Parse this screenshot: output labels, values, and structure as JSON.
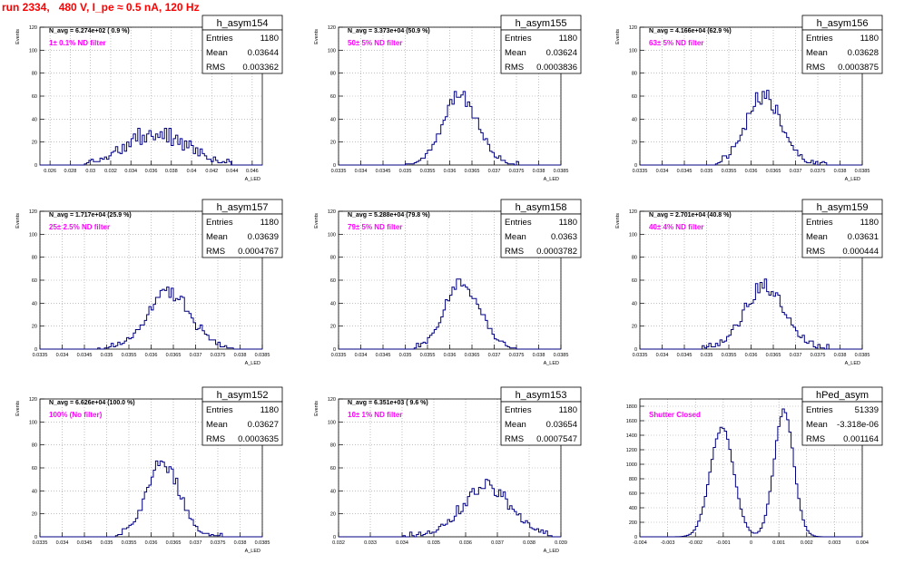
{
  "header": {
    "title": "run 2334,   480 V, I_pe ≈ 0.5 nA, 120 Hz"
  },
  "style": {
    "histogram_color": "#000080",
    "filter_text_color": "#ff00ff",
    "title_color": "#ff0000",
    "grid_color": "#999999"
  },
  "chart_data": [
    {
      "type": "histogram",
      "name": "h_asym154",
      "navg": "N_avg = 6.274e+02 ( 0.9 %)",
      "filter": "1± 0.1% ND filter",
      "stats": {
        "entries": "1180",
        "mean": "0.03644",
        "rms": "0.003362"
      },
      "stat_labels": {
        "entries": "Entries",
        "mean": "Mean",
        "rms": "RMS"
      },
      "ylabel": "Events",
      "xlabel": "A_LED",
      "xlim": [
        0.025,
        0.047
      ],
      "ylim": [
        0,
        120
      ],
      "xticks": [
        "0.026",
        "0.028",
        "0.03",
        "0.032",
        "0.034",
        "0.036",
        "0.038",
        "0.04",
        "0.042",
        "0.044",
        "0.046"
      ],
      "yticks": [
        "0",
        "20",
        "40",
        "60",
        "80",
        "100",
        "120"
      ],
      "shape": {
        "type": "gauss",
        "mu": 0.0365,
        "sigma": 0.0029,
        "peak": 28,
        "nbins": 100,
        "xmin": 0.0295,
        "xmax": 0.044,
        "noise": 0.3,
        "seed": 154
      }
    },
    {
      "type": "histogram",
      "name": "h_asym155",
      "navg": "N_avg = 3.373e+04 (50.9 %)",
      "filter": "50± 5% ND filter",
      "stats": {
        "entries": "1180",
        "mean": "0.03624",
        "rms": "0.0003836"
      },
      "stat_labels": {
        "entries": "Entries",
        "mean": "Mean",
        "rms": "RMS"
      },
      "ylabel": "Events",
      "xlabel": "A_LED",
      "xlim": [
        0.0335,
        0.0385
      ],
      "ylim": [
        0,
        120
      ],
      "xticks": [
        "0.0335",
        "0.034",
        "0.0345",
        "0.035",
        "0.0355",
        "0.036",
        "0.0365",
        "0.037",
        "0.0375",
        "0.038",
        "0.0385"
      ],
      "yticks": [
        "0",
        "20",
        "40",
        "60",
        "80",
        "100",
        "120"
      ],
      "shape": {
        "type": "gauss",
        "mu": 0.03624,
        "sigma": 0.00038,
        "peak": 60,
        "nbins": 100,
        "xmin": 0.0349,
        "xmax": 0.0376,
        "noise": 0.12,
        "seed": 155
      }
    },
    {
      "type": "histogram",
      "name": "h_asym156",
      "navg": "N_avg = 4.166e+04 (62.9 %)",
      "filter": "63± 5% ND filter",
      "stats": {
        "entries": "1180",
        "mean": "0.03628",
        "rms": "0.0003875"
      },
      "stat_labels": {
        "entries": "Entries",
        "mean": "Mean",
        "rms": "RMS"
      },
      "ylabel": "Events",
      "xlabel": "A_LED",
      "xlim": [
        0.0335,
        0.0385
      ],
      "ylim": [
        0,
        120
      ],
      "xticks": [
        "0.0335",
        "0.034",
        "0.0345",
        "0.035",
        "0.0355",
        "0.036",
        "0.0365",
        "0.037",
        "0.0375",
        "0.038",
        "0.0385"
      ],
      "yticks": [
        "0",
        "20",
        "40",
        "60",
        "80",
        "100",
        "120"
      ],
      "shape": {
        "type": "gauss",
        "mu": 0.03628,
        "sigma": 0.00039,
        "peak": 60,
        "nbins": 100,
        "xmin": 0.0352,
        "xmax": 0.0377,
        "noise": 0.12,
        "seed": 156
      }
    },
    {
      "type": "histogram",
      "name": "h_asym157",
      "navg": "N_avg = 1.717e+04 (25.9 %)",
      "filter": "25± 2.5% ND filter",
      "stats": {
        "entries": "1180",
        "mean": "0.03639",
        "rms": "0.0004767"
      },
      "stat_labels": {
        "entries": "Entries",
        "mean": "Mean",
        "rms": "RMS"
      },
      "ylabel": "Events",
      "xlabel": "A_LED",
      "xlim": [
        0.0335,
        0.0385
      ],
      "ylim": [
        0,
        120
      ],
      "xticks": [
        "0.0335",
        "0.034",
        "0.0345",
        "0.035",
        "0.0355",
        "0.036",
        "0.0365",
        "0.037",
        "0.0375",
        "0.038",
        "0.0385"
      ],
      "yticks": [
        "0",
        "20",
        "40",
        "60",
        "80",
        "100",
        "120"
      ],
      "shape": {
        "type": "gauss",
        "mu": 0.03639,
        "sigma": 0.00048,
        "peak": 48,
        "nbins": 100,
        "xmin": 0.0348,
        "xmax": 0.0379,
        "noise": 0.15,
        "seed": 157
      }
    },
    {
      "type": "histogram",
      "name": "h_asym158",
      "navg": "N_avg = 5.288e+04 (79.8 %)",
      "filter": "79± 5% ND filter",
      "stats": {
        "entries": "1180",
        "mean": "0.0363",
        "rms": "0.0003782"
      },
      "stat_labels": {
        "entries": "Entries",
        "mean": "Mean",
        "rms": "RMS"
      },
      "ylabel": "Events",
      "xlabel": "A_LED",
      "xlim": [
        0.0335,
        0.0385
      ],
      "ylim": [
        0,
        120
      ],
      "xticks": [
        "0.0335",
        "0.034",
        "0.0345",
        "0.035",
        "0.0355",
        "0.036",
        "0.0365",
        "0.037",
        "0.0375",
        "0.038",
        "0.0385"
      ],
      "yticks": [
        "0",
        "20",
        "40",
        "60",
        "80",
        "100",
        "120"
      ],
      "shape": {
        "type": "gauss",
        "mu": 0.0363,
        "sigma": 0.00038,
        "peak": 58,
        "nbins": 100,
        "xmin": 0.0352,
        "xmax": 0.0376,
        "noise": 0.12,
        "seed": 158
      }
    },
    {
      "type": "histogram",
      "name": "h_asym159",
      "navg": "N_avg = 2.701e+04 (40.8 %)",
      "filter": "40± 4% ND filter",
      "stats": {
        "entries": "1180",
        "mean": "0.03631",
        "rms": "0.000444"
      },
      "stat_labels": {
        "entries": "Entries",
        "mean": "Mean",
        "rms": "RMS"
      },
      "ylabel": "Events",
      "xlabel": "A_LED",
      "xlim": [
        0.0335,
        0.0385
      ],
      "ylim": [
        0,
        120
      ],
      "xticks": [
        "0.0335",
        "0.034",
        "0.0345",
        "0.035",
        "0.0355",
        "0.036",
        "0.0365",
        "0.037",
        "0.0375",
        "0.038",
        "0.0385"
      ],
      "yticks": [
        "0",
        "20",
        "40",
        "60",
        "80",
        "100",
        "120"
      ],
      "shape": {
        "type": "gauss",
        "mu": 0.03631,
        "sigma": 0.00044,
        "peak": 55,
        "nbins": 100,
        "xmin": 0.0349,
        "xmax": 0.0378,
        "noise": 0.13,
        "seed": 159
      }
    },
    {
      "type": "histogram",
      "name": "h_asym152",
      "navg": "N_avg = 6.626e+04 (100.0 %)",
      "filter": "100% (No filter)",
      "stats": {
        "entries": "1180",
        "mean": "0.03627",
        "rms": "0.0003635"
      },
      "stat_labels": {
        "entries": "Entries",
        "mean": "Mean",
        "rms": "RMS"
      },
      "ylabel": "Events",
      "xlabel": "A_LED",
      "xlim": [
        0.0335,
        0.0385
      ],
      "ylim": [
        0,
        120
      ],
      "xticks": [
        "0.0335",
        "0.034",
        "0.0345",
        "0.035",
        "0.0355",
        "0.036",
        "0.0365",
        "0.037",
        "0.0375",
        "0.038",
        "0.0385"
      ],
      "yticks": [
        "0",
        "20",
        "40",
        "60",
        "80",
        "100",
        "120"
      ],
      "shape": {
        "type": "gauss",
        "mu": 0.03627,
        "sigma": 0.00036,
        "peak": 65,
        "nbins": 100,
        "xmin": 0.0352,
        "xmax": 0.0376,
        "noise": 0.13,
        "seed": 152
      }
    },
    {
      "type": "histogram",
      "name": "h_asym153",
      "navg": "N_avg = 6.351e+03 ( 9.6 %)",
      "filter": "10± 1% ND filter",
      "stats": {
        "entries": "1180",
        "mean": "0.03654",
        "rms": "0.0007547"
      },
      "stat_labels": {
        "entries": "Entries",
        "mean": "Mean",
        "rms": "RMS"
      },
      "ylabel": "Events",
      "xlabel": "A_LED",
      "xlim": [
        0.032,
        0.039
      ],
      "ylim": [
        0,
        120
      ],
      "xticks": [
        "0.032",
        "0.033",
        "0.034",
        "0.035",
        "0.036",
        "0.037",
        "0.038",
        "0.039"
      ],
      "yticks": [
        "0",
        "20",
        "40",
        "60",
        "80",
        "100",
        "120"
      ],
      "shape": {
        "type": "gauss",
        "mu": 0.03665,
        "sigma": 0.00075,
        "peak": 44,
        "nbins": 100,
        "xmin": 0.0338,
        "xmax": 0.0387,
        "noise": 0.18,
        "seed": 153
      }
    },
    {
      "type": "histogram",
      "name": "hPed_asym",
      "navg": "",
      "filter": "Shutter Closed",
      "stats": {
        "entries": "51339",
        "mean": "-3.318e-06",
        "rms": "0.001164"
      },
      "stat_labels": {
        "entries": "Entries",
        "mean": "Mean",
        "rms": "RMS"
      },
      "ylabel": "",
      "xlabel": "",
      "xlim": [
        -0.004,
        0.004
      ],
      "ylim": [
        0,
        1900
      ],
      "xticks": [
        "-0.004",
        "-0.003",
        "-0.002",
        "-0.001",
        "0",
        "0.001",
        "0.002",
        "0.003",
        "0.004"
      ],
      "yticks": [
        "0",
        "200",
        "400",
        "600",
        "800",
        "1000",
        "1200",
        "1400",
        "1600",
        "1800"
      ],
      "shape": {
        "type": "bimodal",
        "mu1": -0.00105,
        "mu2": 0.00118,
        "sigma1": 0.00042,
        "sigma2": 0.00035,
        "peak1": 1500,
        "peak2": 1750,
        "nbins": 100,
        "xmin": -0.0029,
        "xmax": 0.0026,
        "noise": 0.02,
        "seed": 160
      }
    }
  ]
}
